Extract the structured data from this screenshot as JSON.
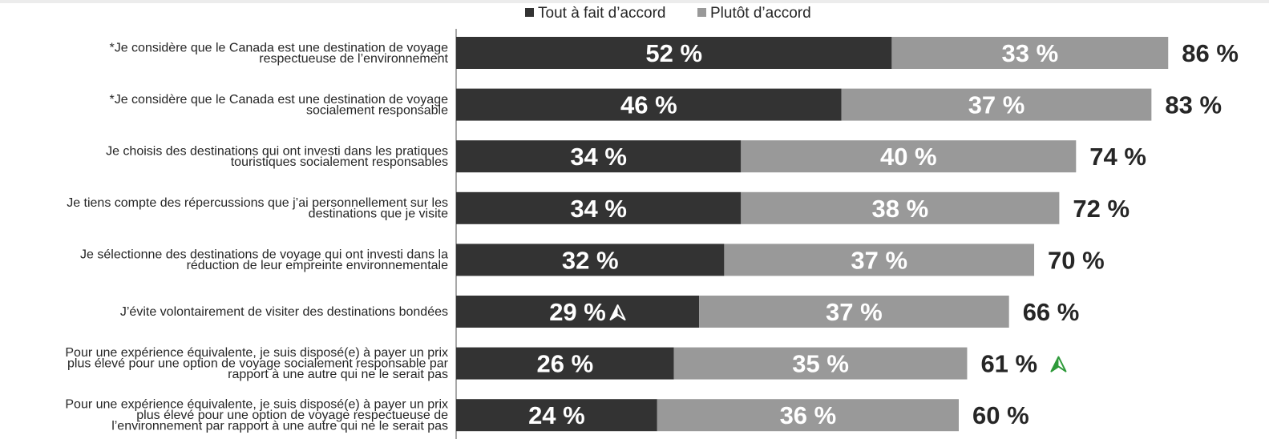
{
  "chart_data": {
    "type": "bar",
    "orientation": "horizontal",
    "stacked": true,
    "legend_position": "top-center",
    "grid": false,
    "xlim": [
      0,
      100
    ],
    "categories": [
      [
        "*Je considère que le Canada est une destination de voyage",
        "respectueuse de l’environnement"
      ],
      [
        "*Je considère que le Canada est une destination de voyage",
        "socialement responsable"
      ],
      [
        "Je choisis des destinations qui ont investi dans les pratiques",
        "touristiques socialement responsables"
      ],
      [
        "Je tiens compte des répercussions que j’ai personnellement sur les",
        "destinations que je visite"
      ],
      [
        "Je sélectionne des destinations de voyage qui ont investi dans la",
        "réduction de leur empreinte environnementale"
      ],
      [
        "J’évite volontairement de visiter des destinations bondées"
      ],
      [
        "Pour une expérience équivalente, je suis disposé(e) à payer un prix",
        "plus élevé pour une option de voyage  socialement responsable par",
        "rapport à une autre qui ne le serait pas"
      ],
      [
        "Pour une expérience équivalente, je suis disposé(e) à payer un prix",
        "plus élevé pour une option de voyage  respectueuse de",
        "l’environnement par rapport à une autre qui ne le serait pas"
      ]
    ],
    "series": [
      {
        "name": "Tout à fait d’accord",
        "color": "#333333",
        "values": [
          52,
          46,
          34,
          34,
          32,
          29,
          26,
          24
        ],
        "labels": [
          "52 %",
          "46 %",
          "34 %",
          "34 %",
          "32 %",
          "29 %",
          "26 %",
          "24 %"
        ]
      },
      {
        "name": "Plutôt d’accord",
        "color": "#999999",
        "values": [
          33,
          37,
          40,
          38,
          37,
          37,
          35,
          36
        ],
        "labels": [
          "33 %",
          "37 %",
          "40 %",
          "38 %",
          "37 %",
          "37 %",
          "35 %",
          "36 %"
        ]
      }
    ],
    "totals": [
      86,
      83,
      74,
      72,
      70,
      66,
      61,
      60
    ],
    "total_labels": [
      "86 %",
      "83 %",
      "74 %",
      "72 %",
      "70 %",
      "66 %",
      "61 %",
      "60 %"
    ],
    "markers": [
      {
        "category_index": 5,
        "series": "Tout à fait d’accord",
        "icon": "arrow-up-icon",
        "color": "#ffffff"
      },
      {
        "category_index": 6,
        "series": "total",
        "icon": "arrow-up-icon",
        "color": "#2e9a3a"
      }
    ]
  }
}
